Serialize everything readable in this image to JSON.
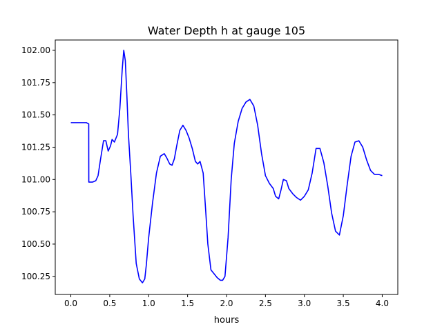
{
  "chart_data": {
    "type": "line",
    "title": "Water Depth h at gauge 105",
    "xlabel": "hours",
    "ylabel": "",
    "xlim": [
      -0.2,
      4.2
    ],
    "ylim": [
      100.11,
      102.08
    ],
    "grid": false,
    "xticks": [
      0.0,
      0.5,
      1.0,
      1.5,
      2.0,
      2.5,
      3.0,
      3.5,
      4.0
    ],
    "xtick_labels": [
      "0.0",
      "0.5",
      "1.0",
      "1.5",
      "2.0",
      "2.5",
      "3.0",
      "3.5",
      "4.0"
    ],
    "yticks": [
      100.25,
      100.5,
      100.75,
      101.0,
      101.25,
      101.5,
      101.75,
      102.0
    ],
    "ytick_labels": [
      "100.25",
      "100.50",
      "100.75",
      "101.00",
      "101.25",
      "101.50",
      "101.75",
      "102.00"
    ],
    "series": [
      {
        "color": "#0000ff",
        "x": [
          0.0,
          0.1,
          0.2,
          0.23,
          0.231,
          0.28,
          0.32,
          0.35,
          0.38,
          0.42,
          0.45,
          0.48,
          0.51,
          0.53,
          0.56,
          0.6,
          0.63,
          0.66,
          0.68,
          0.7,
          0.72,
          0.74,
          0.77,
          0.8,
          0.84,
          0.88,
          0.92,
          0.95,
          0.97,
          1.0,
          1.05,
          1.1,
          1.15,
          1.2,
          1.23,
          1.27,
          1.3,
          1.33,
          1.36,
          1.4,
          1.44,
          1.48,
          1.52,
          1.56,
          1.6,
          1.63,
          1.66,
          1.7,
          1.73,
          1.76,
          1.8,
          1.84,
          1.88,
          1.92,
          1.95,
          1.98,
          2.02,
          2.06,
          2.1,
          2.15,
          2.2,
          2.25,
          2.3,
          2.35,
          2.4,
          2.45,
          2.5,
          2.55,
          2.6,
          2.63,
          2.67,
          2.7,
          2.73,
          2.77,
          2.8,
          2.85,
          2.9,
          2.95,
          3.0,
          3.05,
          3.1,
          3.15,
          3.2,
          3.25,
          3.3,
          3.35,
          3.4,
          3.45,
          3.5,
          3.55,
          3.6,
          3.65,
          3.7,
          3.75,
          3.8,
          3.85,
          3.9,
          3.95,
          4.0
        ],
        "y": [
          101.44,
          101.44,
          101.44,
          101.43,
          100.98,
          100.98,
          100.99,
          101.03,
          101.15,
          101.3,
          101.3,
          101.22,
          101.26,
          101.31,
          101.29,
          101.35,
          101.55,
          101.85,
          102.0,
          101.92,
          101.65,
          101.35,
          101.05,
          100.72,
          100.35,
          100.23,
          100.2,
          100.23,
          100.34,
          100.55,
          100.82,
          101.05,
          101.18,
          101.2,
          101.17,
          101.12,
          101.11,
          101.16,
          101.26,
          101.38,
          101.42,
          101.38,
          101.32,
          101.24,
          101.14,
          101.12,
          101.14,
          101.05,
          100.78,
          100.5,
          100.3,
          100.27,
          100.24,
          100.22,
          100.22,
          100.25,
          100.55,
          101.0,
          101.28,
          101.45,
          101.55,
          101.6,
          101.62,
          101.57,
          101.42,
          101.2,
          101.03,
          100.97,
          100.93,
          100.87,
          100.85,
          100.92,
          101.0,
          100.99,
          100.93,
          100.89,
          100.86,
          100.84,
          100.87,
          100.92,
          101.05,
          101.24,
          101.24,
          101.13,
          100.95,
          100.74,
          100.6,
          100.57,
          100.72,
          100.96,
          101.18,
          101.29,
          101.3,
          101.25,
          101.15,
          101.07,
          101.04,
          101.04,
          101.03
        ]
      }
    ]
  }
}
